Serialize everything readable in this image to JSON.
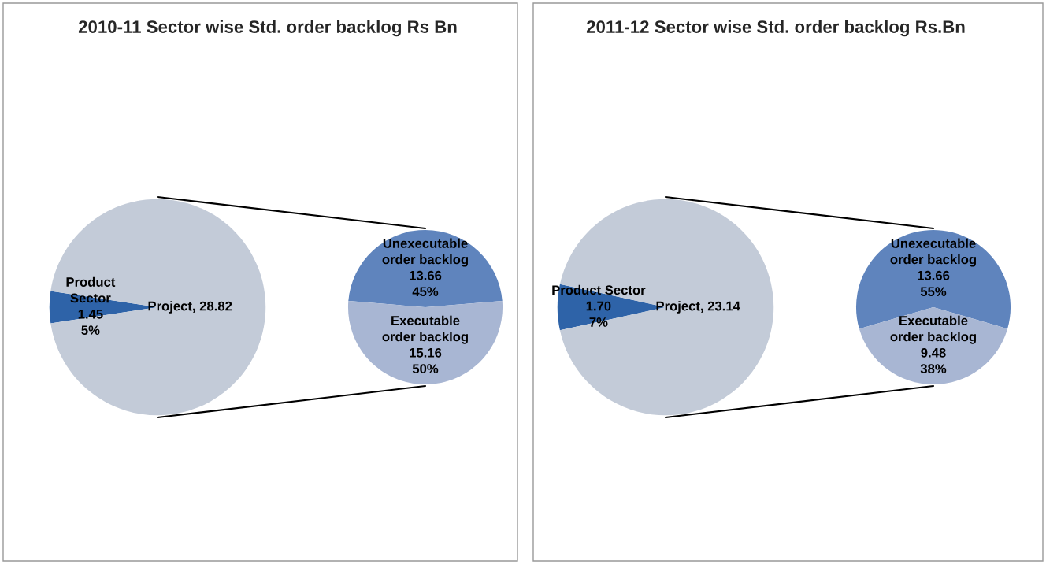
{
  "chart_data": [
    {
      "type": "pie",
      "title": "2010-11 Sector wise Std. order backlog Rs Bn",
      "categories": [
        "Product\nSector",
        "Project"
      ],
      "values": [
        1.45,
        28.82
      ],
      "value_labels": [
        "1.45\n5%",
        "28.82"
      ],
      "colors": [
        "#2e63a8",
        "#c3cbd8"
      ]
    },
    {
      "type": "pie",
      "categories": [
        "Unexecutable\norder backlog",
        "Executable\norder backlog"
      ],
      "values": [
        13.66,
        15.16
      ],
      "value_labels": [
        "13.66\n45%",
        "15.16\n50%"
      ],
      "colors": [
        "#5f84bd",
        "#a8b6d3"
      ]
    },
    {
      "type": "pie",
      "title": "2011-12 Sector wise Std. order backlog Rs.Bn",
      "categories": [
        "Product Sector",
        "Project"
      ],
      "values": [
        1.7,
        23.14
      ],
      "value_labels": [
        "1.70\n7%",
        "23.14"
      ],
      "colors": [
        "#2e63a8",
        "#c3cbd8"
      ]
    },
    {
      "type": "pie",
      "categories": [
        "Unexecutable\norder backlog",
        "Executable\norder backlog"
      ],
      "values": [
        13.66,
        9.48
      ],
      "value_labels": [
        "13.66\n55%",
        "9.48\n38%"
      ],
      "colors": [
        "#5f84bd",
        "#a8b6d3"
      ]
    }
  ]
}
